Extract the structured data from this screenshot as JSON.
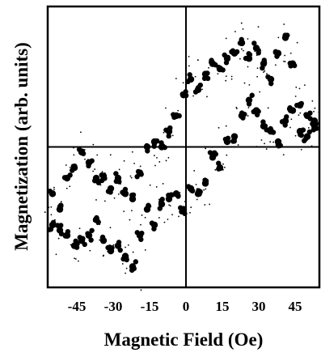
{
  "chart_data": {
    "type": "scatter",
    "title": "",
    "xlabel": "Magnetic Field (Oe)",
    "ylabel": "Magnetization (arb. units)",
    "xticks": [
      "-45",
      "-30",
      "-15",
      "0",
      "15",
      "30",
      "45"
    ],
    "xlim": [
      -57,
      55
    ],
    "ylim": [
      -1.35,
      1.35
    ],
    "y_tick_labels": false,
    "grid": false,
    "crosshair_axes": {
      "x": 0,
      "y": 0
    },
    "marker_color": "#000000",
    "series": [
      {
        "branch": "upper",
        "x": [
          -55,
          -52,
          -49,
          -46,
          -43,
          -40,
          -37,
          -34,
          -31,
          -28,
          -25,
          -22,
          -19,
          -16,
          -13,
          -10,
          -7,
          -4,
          -1,
          2,
          5,
          8,
          11,
          14,
          17,
          20,
          23,
          26,
          29,
          32,
          35,
          38,
          41,
          44,
          47,
          50,
          53
        ],
        "y": [
          -0.45,
          -0.6,
          -0.3,
          -0.2,
          -0.05,
          -0.15,
          -0.3,
          -0.28,
          -0.4,
          -0.3,
          -0.45,
          -0.5,
          -0.25,
          0.0,
          0.05,
          0.0,
          0.15,
          0.3,
          0.5,
          0.65,
          0.55,
          0.7,
          0.8,
          0.75,
          0.85,
          0.9,
          1.0,
          0.85,
          0.95,
          0.8,
          0.65,
          0.9,
          1.05,
          0.8,
          0.4,
          0.3,
          0.25
        ]
      },
      {
        "branch": "lower",
        "x": [
          -55,
          -52,
          -49,
          -46,
          -43,
          -40,
          -37,
          -34,
          -31,
          -28,
          -25,
          -22,
          -19,
          -16,
          -13,
          -10,
          -7,
          -4,
          -1,
          2,
          5,
          8,
          11,
          14,
          17,
          20,
          23,
          26,
          29,
          32,
          35,
          38,
          41,
          44,
          47,
          50,
          53
        ],
        "y": [
          -0.75,
          -0.8,
          -0.85,
          -0.95,
          -0.9,
          -0.85,
          -0.7,
          -0.9,
          -1.0,
          -0.95,
          -1.05,
          -1.15,
          -0.85,
          -0.6,
          -0.75,
          -0.55,
          -0.5,
          -0.45,
          -0.6,
          -0.4,
          -0.45,
          -0.35,
          -0.1,
          -0.2,
          0.05,
          0.1,
          0.3,
          0.45,
          0.35,
          0.2,
          0.15,
          0.05,
          0.25,
          0.35,
          0.15,
          0.1,
          0.2
        ]
      }
    ]
  }
}
